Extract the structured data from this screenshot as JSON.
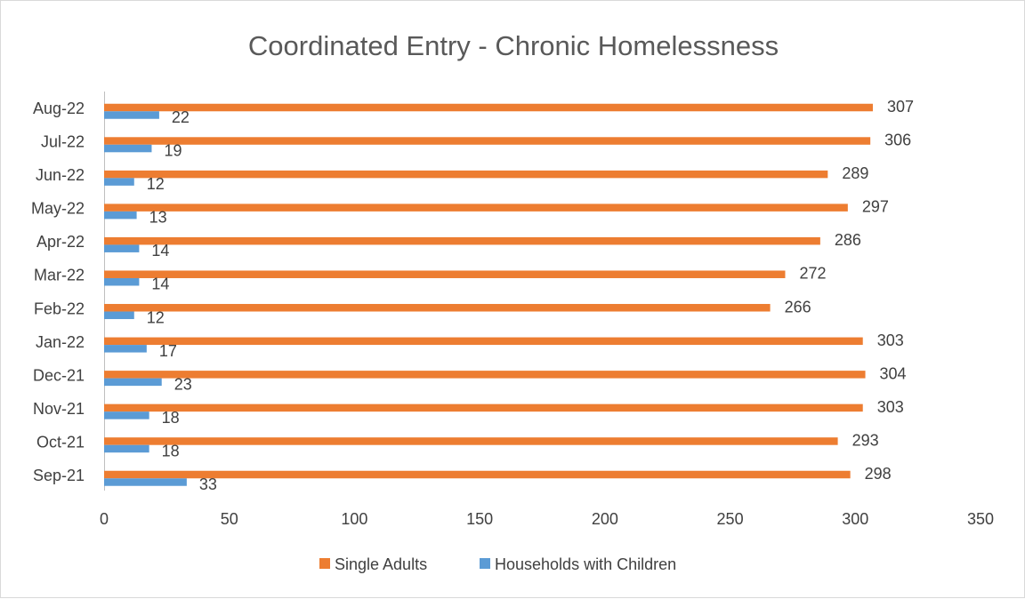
{
  "chart_data": {
    "type": "bar",
    "orientation": "horizontal",
    "title": "Coordinated Entry - Chronic Homelessness",
    "categories": [
      "Sep-21",
      "Oct-21",
      "Nov-21",
      "Dec-21",
      "Jan-22",
      "Feb-22",
      "Mar-22",
      "Apr-22",
      "May-22",
      "Jun-22",
      "Jul-22",
      "Aug-22"
    ],
    "series": [
      {
        "name": "Single Adults",
        "color": "#ED7D31",
        "values": [
          298,
          293,
          303,
          304,
          303,
          266,
          272,
          286,
          297,
          289,
          306,
          307
        ]
      },
      {
        "name": "Households with Children",
        "color": "#5B9BD5",
        "values": [
          33,
          18,
          18,
          23,
          17,
          12,
          14,
          14,
          13,
          12,
          19,
          22
        ]
      }
    ],
    "x_ticks": [
      0,
      50,
      100,
      150,
      200,
      250,
      300,
      350
    ],
    "xlim": [
      0,
      350
    ],
    "xlabel": "",
    "ylabel": "",
    "grid": false,
    "data_labels": true,
    "legend_position": "bottom"
  }
}
